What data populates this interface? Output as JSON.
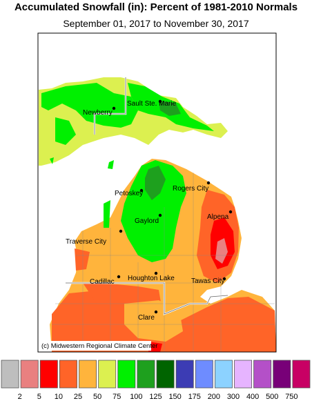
{
  "header": {
    "title": "Accumulated Snowfall (in): Percent of 1981-2010 Normals",
    "subtitle": "September 01, 2017 to November 30, 2017"
  },
  "cities": [
    "Newberry",
    "Sault Ste. Marie",
    "Petoskey",
    "Rogers City",
    "Gaylord",
    "Alpena",
    "Traverse City",
    "Cadillac",
    "Houghton Lake",
    "Tawas City",
    "Clare"
  ],
  "credit": "(c) Midwestern Regional Climate Center",
  "legend": {
    "colors": [
      "#bebebe",
      "#e98080",
      "#ff0000",
      "#ff6428",
      "#ffb43c",
      "#dcf050",
      "#00f000",
      "#1ea01e",
      "#006400",
      "#3c3cb4",
      "#6e8cff",
      "#8cd2ff",
      "#e6b4ff",
      "#b450c8",
      "#780078",
      "#c80064"
    ],
    "labels": [
      2,
      5,
      10,
      25,
      50,
      75,
      100,
      125,
      150,
      175,
      200,
      300,
      400,
      500,
      750
    ]
  }
}
